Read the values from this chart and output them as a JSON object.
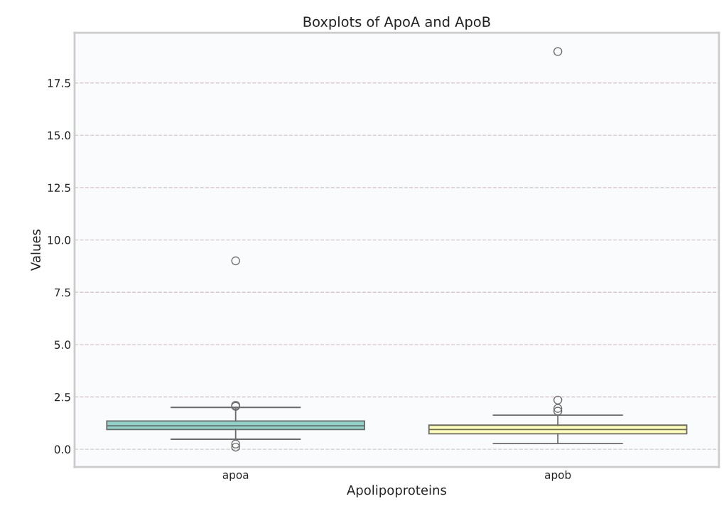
{
  "chart_data": {
    "type": "box",
    "title": "Boxplots of ApoA and ApoB",
    "xlabel": "Apolipoproteins",
    "ylabel": "Values",
    "categories": [
      "apoa",
      "apob"
    ],
    "colors": [
      "#8dd3c7",
      "#ffffb3"
    ],
    "boxes": [
      {
        "low": 0.48,
        "q1": 0.94,
        "median": 1.12,
        "q3": 1.35,
        "high": 2.0,
        "outliers": [
          0.1,
          0.25,
          2.05,
          2.1,
          9.0
        ]
      },
      {
        "low": 0.27,
        "q1": 0.74,
        "median": 0.94,
        "q3": 1.15,
        "high": 1.63,
        "outliers": [
          1.82,
          1.95,
          2.35,
          19.0
        ]
      }
    ],
    "ylim": [
      -0.85,
      19.9
    ],
    "yticks": [
      {
        "value": 0,
        "label": "0.0"
      },
      {
        "value": 2.5,
        "label": "2.5"
      },
      {
        "value": 5,
        "label": "5.0"
      },
      {
        "value": 7.5,
        "label": "7.5"
      },
      {
        "value": 10,
        "label": "10.0"
      },
      {
        "value": 12.5,
        "label": "12.5"
      },
      {
        "value": 15,
        "label": "15.0"
      },
      {
        "value": 17.5,
        "label": "17.5"
      }
    ],
    "grid": "y"
  }
}
